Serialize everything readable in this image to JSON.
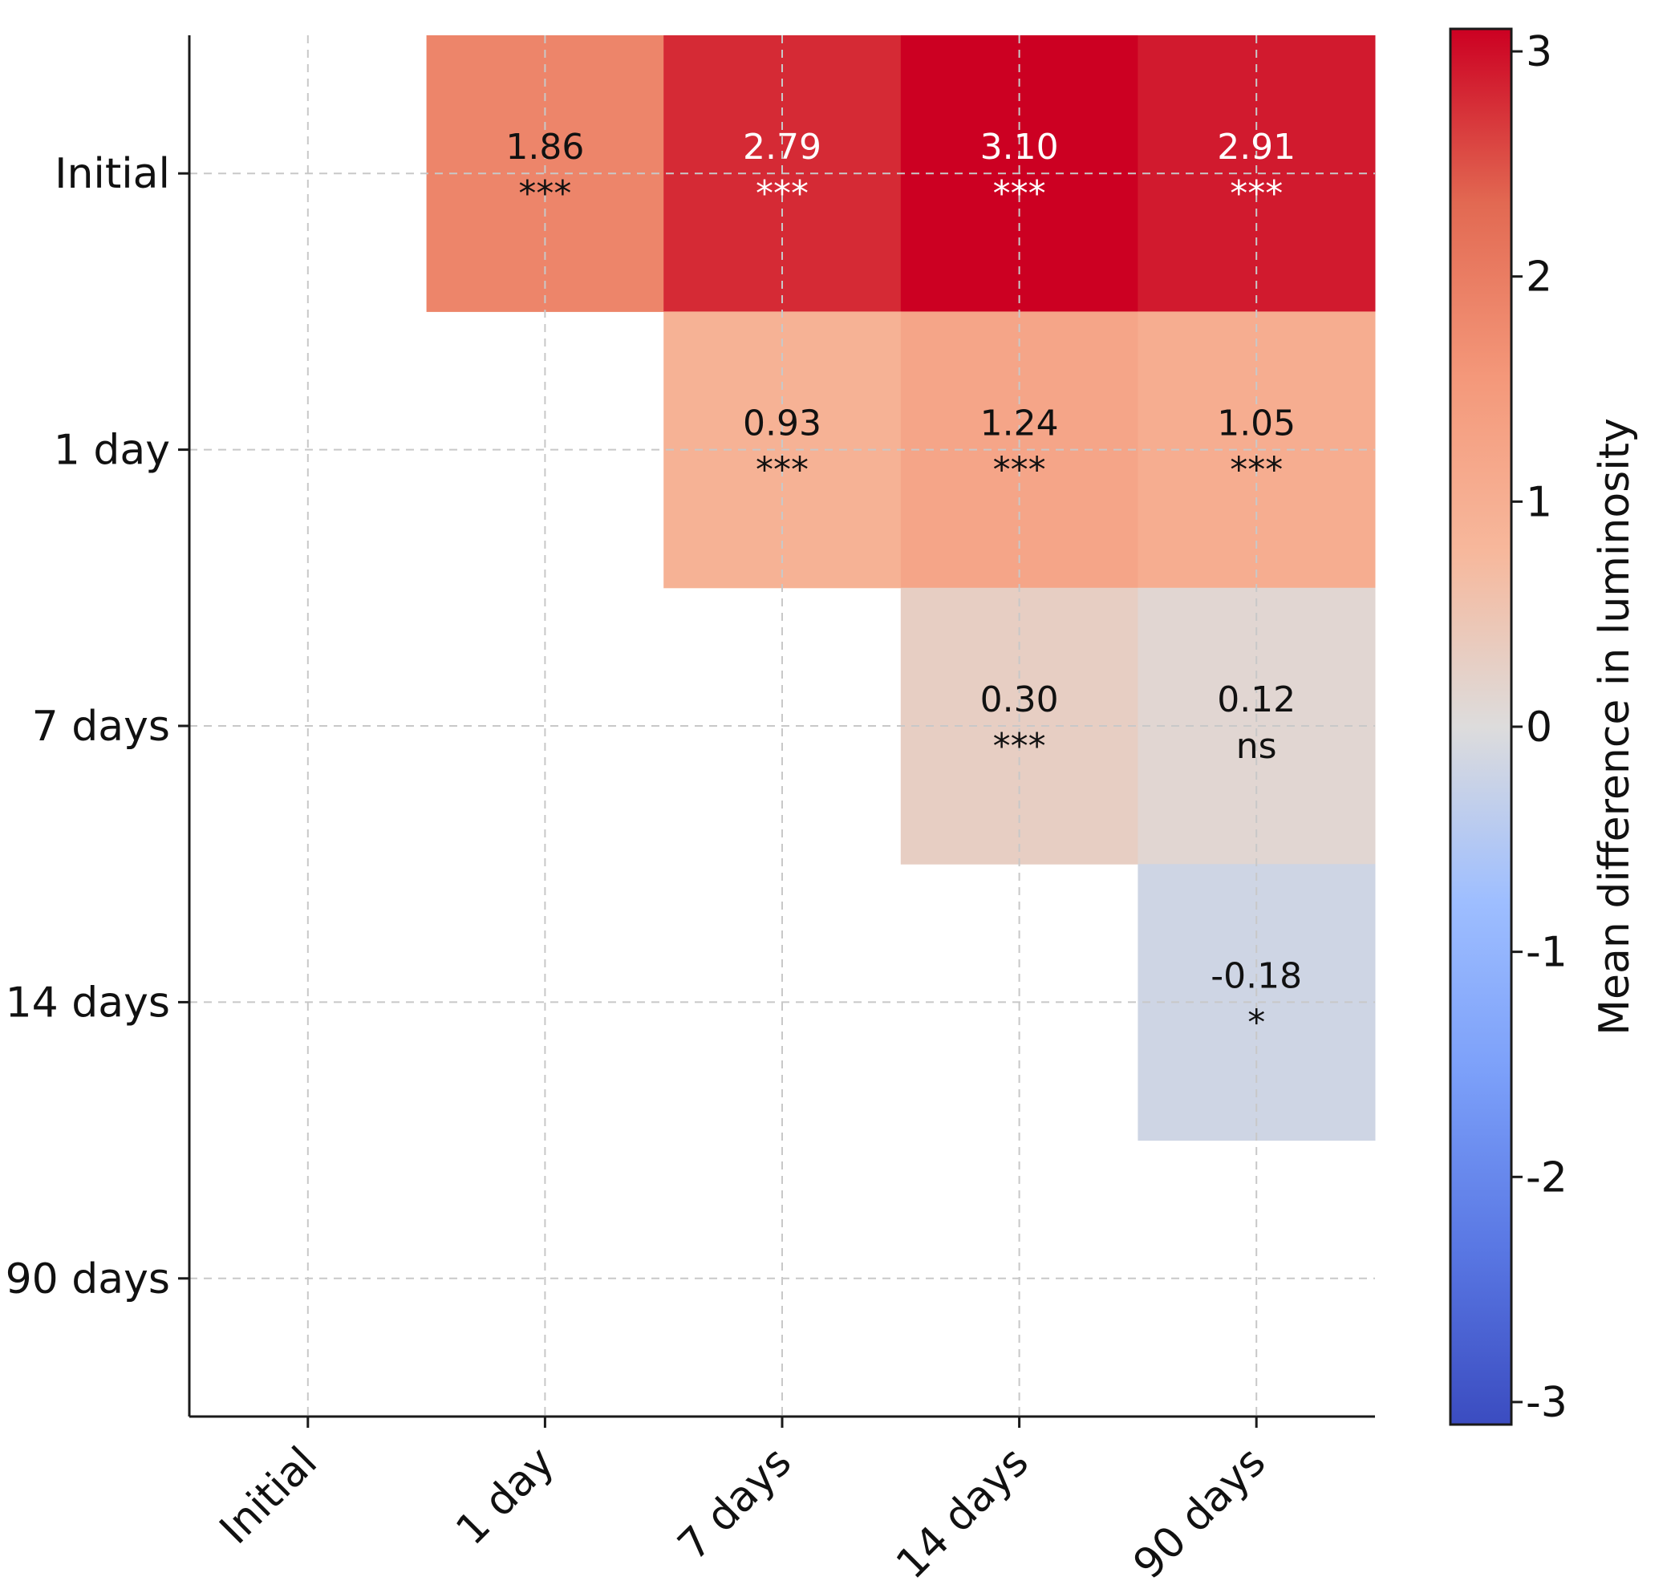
{
  "chart_data": {
    "type": "heatmap",
    "row_labels": [
      "Initial",
      "1 day",
      "7 days",
      "14 days",
      "90 days"
    ],
    "col_labels": [
      "Initial",
      "1 day",
      "7 days",
      "14 days",
      "90 days"
    ],
    "cells": [
      {
        "row": 0,
        "col": 1,
        "value": 1.86,
        "label": "1.86",
        "sig": "***"
      },
      {
        "row": 0,
        "col": 2,
        "value": 2.79,
        "label": "2.79",
        "sig": "***"
      },
      {
        "row": 0,
        "col": 3,
        "value": 3.1,
        "label": "3.10",
        "sig": "***"
      },
      {
        "row": 0,
        "col": 4,
        "value": 2.91,
        "label": "2.91",
        "sig": "***"
      },
      {
        "row": 1,
        "col": 2,
        "value": 0.93,
        "label": "0.93",
        "sig": "***"
      },
      {
        "row": 1,
        "col": 3,
        "value": 1.24,
        "label": "1.24",
        "sig": "***"
      },
      {
        "row": 1,
        "col": 4,
        "value": 1.05,
        "label": "1.05",
        "sig": "***"
      },
      {
        "row": 2,
        "col": 3,
        "value": 0.3,
        "label": "0.30",
        "sig": "***"
      },
      {
        "row": 2,
        "col": 4,
        "value": 0.12,
        "label": "0.12",
        "sig": "ns"
      },
      {
        "row": 3,
        "col": 4,
        "value": -0.18,
        "label": "-0.18",
        "sig": "*"
      }
    ],
    "colorbar": {
      "label": "Mean difference in luminosity",
      "vmin": -3.1,
      "vmax": 3.1,
      "ticks": [
        3,
        2,
        1,
        0,
        -1,
        -2,
        -3
      ],
      "tick_labels": [
        "3",
        "2",
        "1",
        "0",
        "-1",
        "-2",
        "-3"
      ],
      "colormap": "coolwarm"
    },
    "grid": true
  },
  "colors": {
    "text_dark": "#111111",
    "text_light": "#ffffff",
    "grid": "#c8c8c8"
  }
}
